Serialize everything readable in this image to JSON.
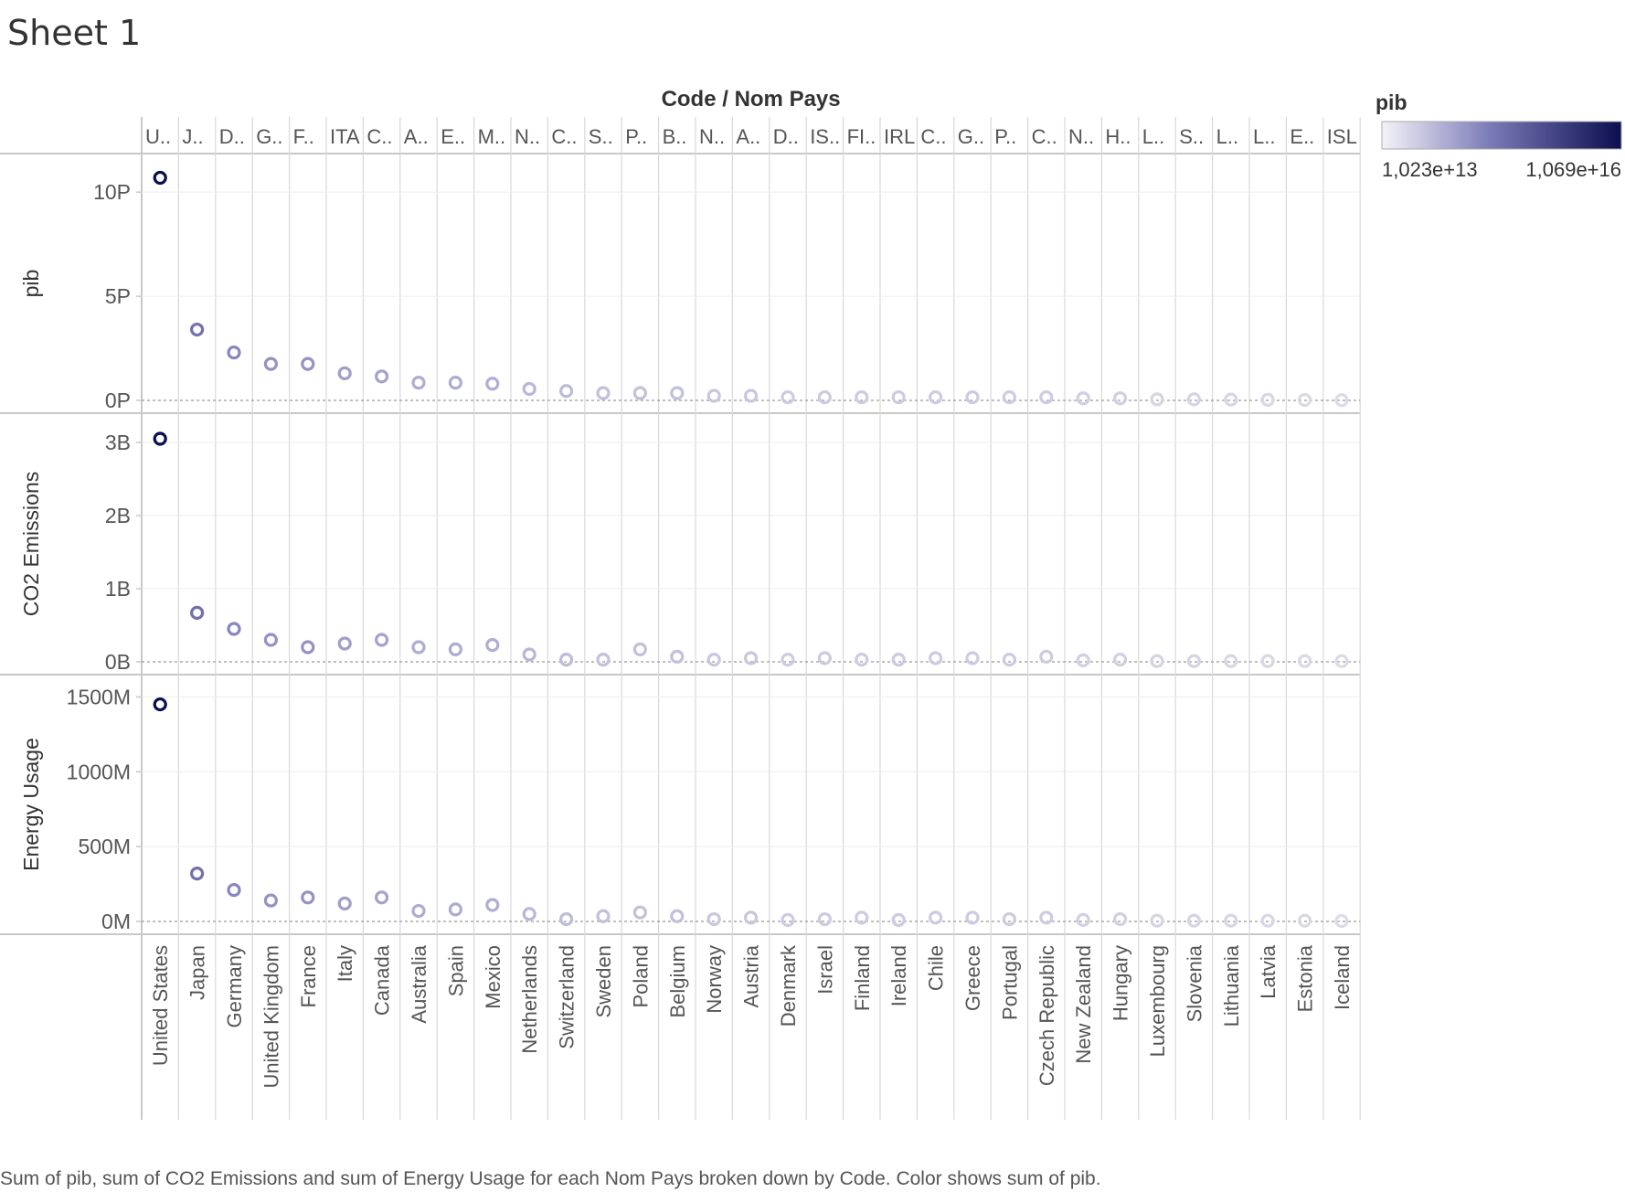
{
  "sheet": {
    "title": "Sheet 1"
  },
  "caption": "Sum of pib, sum of CO2 Emissions and sum of Energy Usage for each Nom Pays broken down by Code.  Color shows sum of pib.",
  "colors": {
    "low": "#dedbe8",
    "mid": "#7b7bb8",
    "high": "#0c0d4f",
    "grid": "#d0d0d0",
    "axis": "#c8c8c8"
  },
  "legend": {
    "title": "pib",
    "min_label": "1,023e+13",
    "max_label": "1,069e+16",
    "position": "top-right"
  },
  "chart_data": {
    "type": "scatter",
    "column_header": "Code / Nom Pays",
    "codes": [
      "U..",
      "J..",
      "D..",
      "G..",
      "F..",
      "ITA",
      "C..",
      "A..",
      "E..",
      "M..",
      "N..",
      "C..",
      "S..",
      "P..",
      "B..",
      "N..",
      "A..",
      "D..",
      "IS..",
      "FI..",
      "IRL",
      "C..",
      "G..",
      "P..",
      "C..",
      "N..",
      "H..",
      "L..",
      "S..",
      "L..",
      "L..",
      "E..",
      "ISL"
    ],
    "countries": [
      "United States",
      "Japan",
      "Germany",
      "United Kingdom",
      "France",
      "Italy",
      "Canada",
      "Australia",
      "Spain",
      "Mexico",
      "Netherlands",
      "Switzerland",
      "Sweden",
      "Poland",
      "Belgium",
      "Norway",
      "Austria",
      "Denmark",
      "Israel",
      "Finland",
      "Ireland",
      "Chile",
      "Greece",
      "Portugal",
      "Czech Republic",
      "New Zealand",
      "Hungary",
      "Luxembourg",
      "Slovenia",
      "Lithuania",
      "Latvia",
      "Estonia",
      "Iceland"
    ],
    "color_scale": {
      "min": 10230000000000.0,
      "max": 1.069e+16
    },
    "panels": [
      {
        "measure": "pib",
        "ylabel": "pib",
        "ylim": [
          0,
          1.15e+16
        ],
        "ticks": [
          0,
          5000000000000000.0,
          1e+16
        ],
        "tick_labels": [
          "0P",
          "5P",
          "10P"
        ],
        "values": [
          1.069e+16,
          3400000000000000.0,
          2300000000000000.0,
          1750000000000000.0,
          1750000000000000.0,
          1300000000000000.0,
          1150000000000000.0,
          850000000000000.0,
          850000000000000.0,
          800000000000000.0,
          550000000000000.0,
          450000000000000.0,
          350000000000000.0,
          350000000000000.0,
          350000000000000.0,
          220000000000000.0,
          220000000000000.0,
          150000000000000.0,
          150000000000000.0,
          150000000000000.0,
          150000000000000.0,
          150000000000000.0,
          150000000000000.0,
          150000000000000.0,
          150000000000000.0,
          100000000000000.0,
          100000000000000.0,
          50000000000000.0,
          50000000000000.0,
          40000000000000.0,
          30000000000000.0,
          20000000000000.0,
          10000000000000.0
        ]
      },
      {
        "measure": "CO2 Emissions",
        "ylabel": "CO2 Emissions",
        "ylim": [
          0,
          3300000000.0
        ],
        "ticks": [
          0,
          1000000000.0,
          2000000000.0,
          3000000000.0
        ],
        "tick_labels": [
          "0B",
          "1B",
          "2B",
          "3B"
        ],
        "values": [
          3050000000.0,
          670000000.0,
          450000000.0,
          300000000.0,
          200000000.0,
          250000000.0,
          300000000.0,
          200000000.0,
          170000000.0,
          230000000.0,
          100000000.0,
          30000000.0,
          30000000.0,
          170000000.0,
          70000000.0,
          30000000.0,
          50000000.0,
          30000000.0,
          50000000.0,
          30000000.0,
          30000000.0,
          50000000.0,
          50000000.0,
          30000000.0,
          70000000.0,
          20000000.0,
          30000000.0,
          10000000.0,
          10000000.0,
          10000000.0,
          10000000.0,
          10000000.0,
          10000000.0
        ]
      },
      {
        "measure": "Energy Usage",
        "ylabel": "Energy Usage",
        "ylim": [
          0,
          1600000000.0
        ],
        "ticks": [
          0,
          500000000.0,
          1000000000.0,
          1500000000.0
        ],
        "tick_labels": [
          "0M",
          "500M",
          "1000M",
          "1500M"
        ],
        "values": [
          1450000000.0,
          320000000.0,
          210000000.0,
          140000000.0,
          160000000.0,
          120000000.0,
          160000000.0,
          70000000.0,
          80000000.0,
          110000000.0,
          50000000.0,
          15000000.0,
          35000000.0,
          60000000.0,
          35000000.0,
          15000000.0,
          25000000.0,
          10000000.0,
          15000000.0,
          25000000.0,
          10000000.0,
          25000000.0,
          25000000.0,
          15000000.0,
          25000000.0,
          10000000.0,
          15000000.0,
          5000000.0,
          5000000.0,
          5000000.0,
          5000000.0,
          5000000.0,
          3000000.0
        ]
      }
    ]
  }
}
